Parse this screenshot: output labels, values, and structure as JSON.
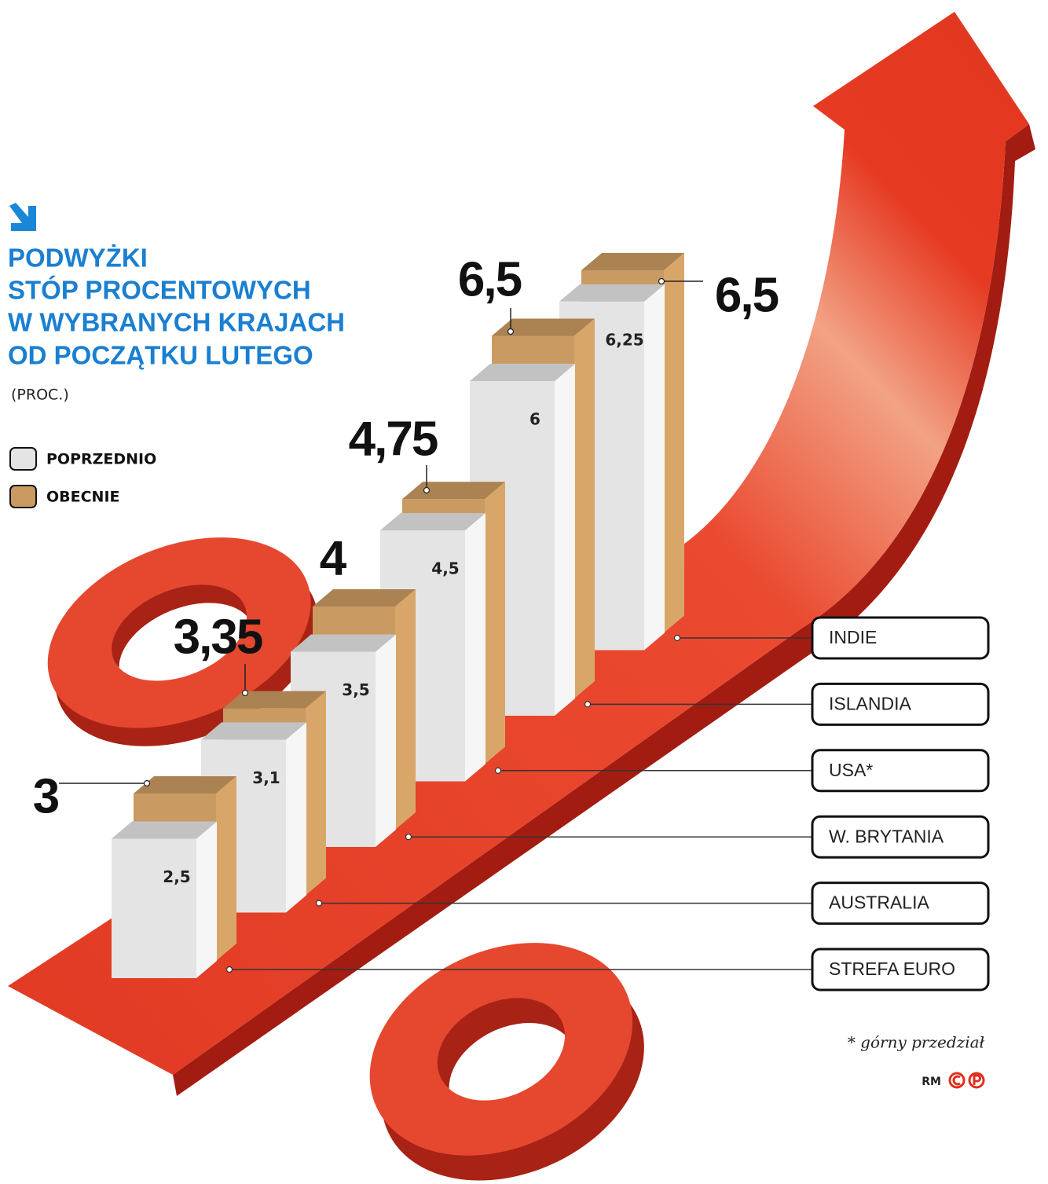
{
  "chart_data": {
    "type": "bar3d",
    "title": [
      "PODWYŻKI",
      "STÓP PROCENTOWYCH",
      "W WYBRANYCH KRAJACH",
      "OD POCZĄTKU LUTEGO"
    ],
    "subtitle": "(PROC.)",
    "categories": [
      "STREFA EURO",
      "AUSTRALIA",
      "W. BRYTANIA",
      "USA*",
      "ISLANDIA",
      "INDIE"
    ],
    "series": [
      {
        "name": "POPRZEDNIO",
        "color": "#e4e4e4",
        "values": [
          2.5,
          3.1,
          3.5,
          4.5,
          6,
          6.25
        ],
        "value_labels": [
          "2,5",
          "3,1",
          "3,5",
          "4,5",
          "6",
          "6,25"
        ]
      },
      {
        "name": "OBECNIE",
        "color": "#c99a62",
        "values": [
          3,
          3.35,
          4,
          4.75,
          6.5,
          6.5
        ],
        "value_labels": [
          "3",
          "3,35",
          "4",
          "4,75",
          "6,5",
          "6,5"
        ]
      }
    ],
    "footnote": "* górny przedział",
    "credit": "RM"
  }
}
